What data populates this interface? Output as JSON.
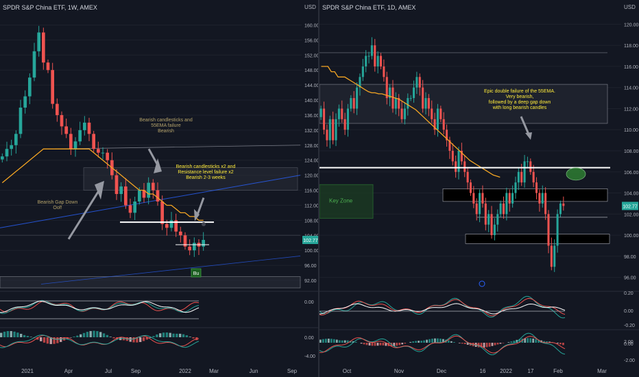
{
  "left": {
    "header": "SPDR S&P China ETF, 1W, AMEX",
    "currency": "USD",
    "price_tag": "102.77",
    "badge": "Bu",
    "annotations": {
      "bearish_55ema": "Bearish candlesticks and\n55EMA failure\nBearish",
      "resistance": "Bearish candlesticks x2 and\nResistance level failure x2\nBearish 2-3 weeks",
      "gap_down": "Bearish Gap Down\nOof!"
    },
    "x_labels": [
      "2021",
      "Apr",
      "Jul",
      "Sep",
      "2022",
      "Mar",
      "Jun",
      "Sep"
    ],
    "y_labels": [
      "160.00",
      "156.00",
      "152.00",
      "148.00",
      "144.00",
      "140.00",
      "136.00",
      "132.00",
      "128.00",
      "124.00",
      "120.00",
      "116.00",
      "112.00",
      "108.00",
      "104.00",
      "100.00",
      "96.00",
      "92.00"
    ],
    "ind1_labels": [
      "0.00"
    ],
    "ind2_labels": [
      "0.00",
      "-4.00"
    ],
    "colors": {
      "up": "#26a69a",
      "down": "#ef5350",
      "ema": "#f5a623",
      "annotation": "#ffeb3b",
      "annotation_muted": "#b5a36b"
    },
    "chart_data": {
      "type": "candlestick",
      "timeframe": "1W",
      "ylim": [
        90,
        163
      ],
      "x_ticks": [
        "2021",
        "Apr",
        "Jul",
        "Sep",
        "2022",
        "Mar",
        "Jun",
        "Sep"
      ],
      "series": [
        {
          "name": "Price (approx. closes)",
          "values": [
            125,
            127,
            128,
            131,
            138,
            141,
            146,
            153,
            158,
            150,
            148,
            139,
            136,
            133,
            131,
            127,
            129,
            132,
            134,
            131,
            127,
            126,
            126,
            124,
            120,
            115,
            117,
            112,
            110,
            113,
            116,
            114,
            118,
            116,
            113,
            107,
            106,
            108,
            105,
            104,
            101,
            100,
            102,
            101,
            102.77
          ]
        },
        {
          "name": "55 EMA (approx.)",
          "values": [
            118,
            119,
            120,
            121,
            122,
            123,
            124,
            125,
            126,
            127,
            127,
            127,
            127,
            127,
            127,
            127,
            127,
            127,
            127,
            127,
            126,
            125,
            124,
            123,
            122,
            121,
            120,
            119,
            118,
            117,
            116,
            116,
            115,
            115,
            114,
            113,
            112,
            112,
            111,
            110,
            110,
            109,
            109,
            108,
            108
          ]
        }
      ]
    }
  },
  "right": {
    "header": "SPDR S&P China ETF, 1D, AMEX",
    "currency": "USD",
    "price_tag": "102.77",
    "key_zone": "Key Zone",
    "annotation": "Epic double failure of the 55EMA.\nVery bearish,\nfollowed by a deep gap down\nwith long bearish candles",
    "x_labels": [
      "Oct",
      "Nov",
      "Dec",
      "16",
      "2022",
      "17",
      "Feb",
      "Mar"
    ],
    "y_labels": [
      "120.00",
      "118.00",
      "116.00",
      "114.00",
      "112.00",
      "110.00",
      "108.00",
      "106.00",
      "104.00",
      "102.00",
      "100.00",
      "98.00",
      "96.00"
    ],
    "ind1_labels": [
      "0.20",
      "0.00",
      "-0.20"
    ],
    "ind2_labels": [
      "2.00",
      "0.00",
      "-2.00"
    ],
    "chart_data": {
      "type": "candlestick",
      "timeframe": "1D",
      "ylim": [
        95,
        121
      ],
      "x_ticks": [
        "Oct",
        "Nov",
        "Dec",
        "16",
        "2022",
        "17",
        "Feb",
        "Mar"
      ],
      "series": [
        {
          "name": "Price (approx. closes)",
          "values": [
            112,
            110,
            109,
            111,
            109,
            111,
            112,
            111,
            110,
            112,
            113,
            112,
            114,
            115,
            116,
            117,
            117,
            118,
            116,
            117,
            116,
            115,
            113,
            114,
            112,
            113,
            112,
            111,
            112,
            113,
            113,
            114,
            115,
            114,
            112,
            113,
            112,
            111,
            110,
            112,
            111,
            110,
            109,
            108,
            107,
            106,
            108,
            107,
            106,
            105,
            104,
            103,
            102,
            104,
            103,
            101,
            102,
            100,
            101,
            102,
            103,
            102,
            104,
            103,
            104,
            105,
            106,
            105,
            107,
            107,
            106,
            105,
            104,
            103,
            104,
            102,
            99,
            97,
            99,
            102,
            103,
            102.77
          ]
        },
        {
          "name": "55 EMA (approx.)",
          "values": [
            116,
            116,
            116,
            115.5,
            115.5,
            115,
            115,
            115,
            114.8,
            114.6,
            114.4,
            114.2,
            114,
            113.8,
            113.6,
            113.5,
            113.5,
            113.4,
            113.4,
            113.3,
            113.2,
            113.1,
            113,
            112.9,
            112.7,
            112.5,
            112.3,
            112.1,
            111.9,
            111.6,
            111.3,
            111,
            110.7,
            110.4,
            110.1,
            109.8,
            109.5,
            109.2,
            108.9,
            108.6,
            108.3,
            108,
            107.7,
            107.4,
            107.1,
            106.9,
            106.7,
            106.5,
            106.3,
            106.1,
            105.9,
            105.7,
            105.6,
            105.5
          ]
        }
      ]
    }
  }
}
